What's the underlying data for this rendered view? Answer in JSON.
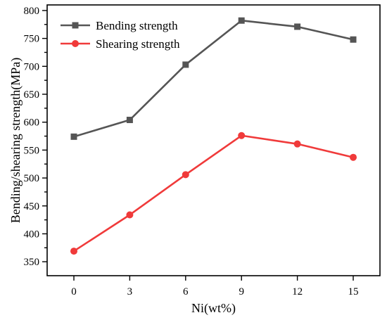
{
  "chart_data": {
    "type": "line",
    "x": [
      0,
      3,
      6,
      9,
      12,
      15
    ],
    "x_tick_labels": [
      "0",
      "3",
      "6",
      "9",
      "12",
      "15"
    ],
    "xlabel": "Ni(wt%)",
    "ylabel": "Bending/shearing strength(MPa)",
    "ylim": [
      325,
      810
    ],
    "y_ticks": [
      350,
      400,
      450,
      500,
      550,
      600,
      650,
      700,
      750,
      800
    ],
    "y_tick_labels": [
      "350",
      "400",
      "450",
      "500",
      "550",
      "600",
      "650",
      "700",
      "750",
      "800"
    ],
    "grid": false,
    "legend_position": "top-left",
    "series": [
      {
        "name": "Bending strength",
        "values": [
          574,
          604,
          703,
          782,
          771,
          748
        ],
        "color": "#555555",
        "marker": "square"
      },
      {
        "name": "Shearing strength",
        "values": [
          369,
          434,
          506,
          576,
          561,
          537
        ],
        "color": "#f03a3a",
        "marker": "circle"
      }
    ]
  }
}
